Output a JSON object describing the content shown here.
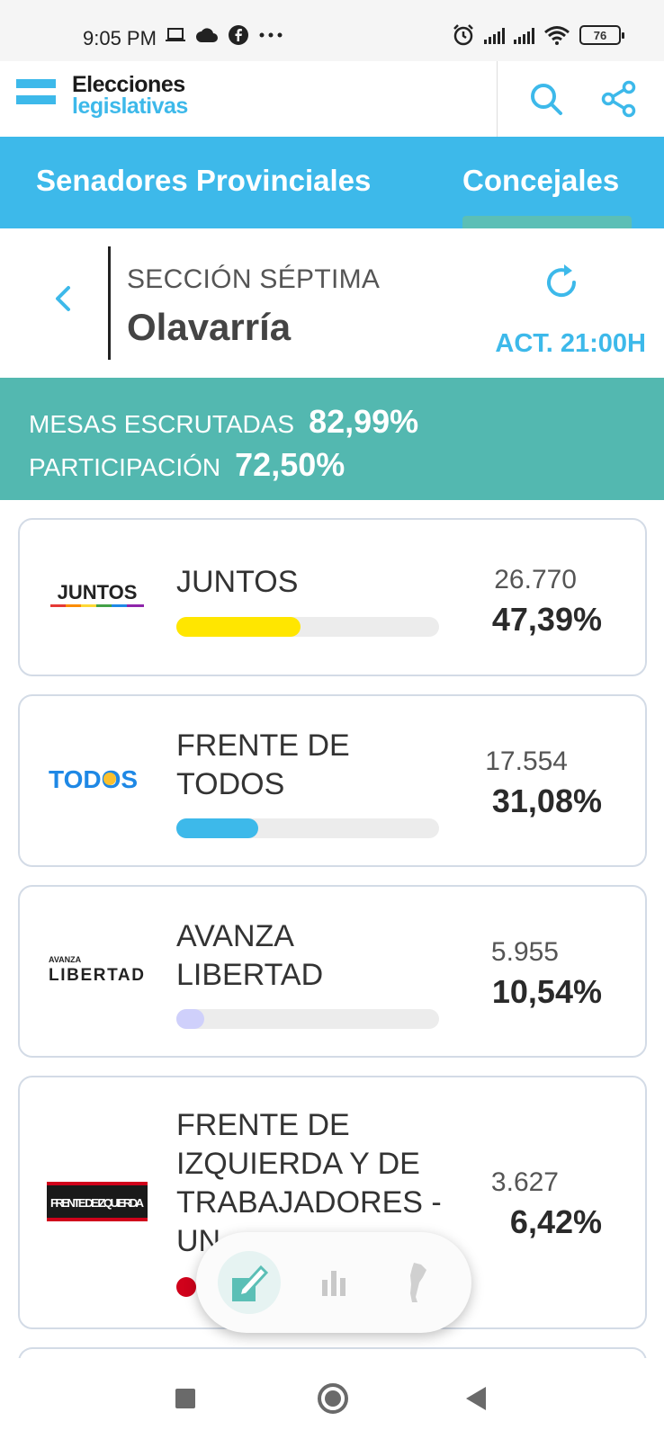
{
  "status_bar": {
    "time": "9:05 PM",
    "left_icons": [
      "laptop-icon",
      "cloud-icon",
      "facebook-icon",
      "more-dots-icon"
    ],
    "right_icons": [
      "alarm-icon",
      "signal-icon",
      "signal-icon",
      "wifi-icon",
      "battery-icon"
    ],
    "battery": "76"
  },
  "header": {
    "logo_line1": "Elecciones",
    "logo_line2": "legislativas",
    "accent_color": "#3db9ea"
  },
  "tabs": {
    "items": [
      {
        "label": "Senadores Provinciales",
        "active": false
      },
      {
        "label": "Concejales",
        "active": true
      }
    ]
  },
  "location": {
    "section": "SECCIÓN SÉPTIMA",
    "city": "Olavarría",
    "update": "ACT. 21:00H"
  },
  "stats": {
    "mesas_label": "MESAS ESCRUTADAS",
    "mesas_value": "82,99%",
    "participacion_label": "PARTICIPACIÓN",
    "participacion_value": "72,50%"
  },
  "results": [
    {
      "logo_text": "JUNTOS",
      "name": "JUNTOS",
      "votes": "26.770",
      "percent": "47,39%",
      "share": 0.4739,
      "color": "#ffe600"
    },
    {
      "logo_text": "TODOS",
      "name": "FRENTE DE TODOS",
      "votes": "17.554",
      "percent": "31,08%",
      "share": 0.3108,
      "color": "#3db9ea"
    },
    {
      "logo_text_small": "AVANZA",
      "logo_text": "LIBERTAD",
      "name": "AVANZA LIBERTAD",
      "votes": "5.955",
      "percent": "10,54%",
      "share": 0.1054,
      "color": "#cfd0fb"
    },
    {
      "logo_text": "FRENTE DE IZQUIERDA",
      "name": "FRENTE DE IZQUIERDA Y DE TRABAJADORES - UNIDAD",
      "name_visible": "FRENTE DE\nIZQUIERDA Y DE\nTRABAJADORES -\nUN",
      "votes": "3.627",
      "percent": "6,42%",
      "share": 0.0642,
      "color": "#d0021b"
    }
  ],
  "bottom_nav": {
    "items": [
      "vote-icon",
      "chart-icon",
      "argentina-map-icon"
    ]
  }
}
